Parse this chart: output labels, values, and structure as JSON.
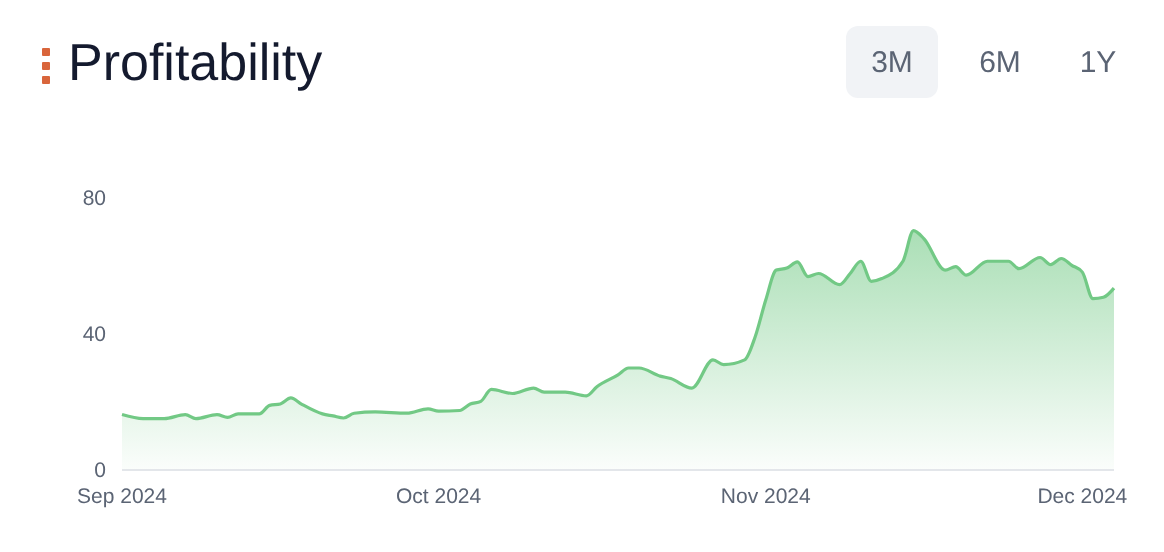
{
  "chart_data": {
    "type": "area",
    "title": "Profitability",
    "annotations": [
      "3M",
      "6M",
      "1Y"
    ],
    "x": [
      "2024-09-01",
      "2024-09-03",
      "2024-09-05",
      "2024-09-07",
      "2024-09-08",
      "2024-09-10",
      "2024-09-11",
      "2024-09-12",
      "2024-09-14",
      "2024-09-15",
      "2024-09-16",
      "2024-09-17",
      "2024-09-18",
      "2024-09-20",
      "2024-09-21",
      "2024-09-22",
      "2024-09-23",
      "2024-09-25",
      "2024-09-28",
      "2024-09-30",
      "2024-10-01",
      "2024-10-03",
      "2024-10-04",
      "2024-10-05",
      "2024-10-06",
      "2024-10-08",
      "2024-10-10",
      "2024-10-11",
      "2024-10-13",
      "2024-10-15",
      "2024-10-16",
      "2024-10-18",
      "2024-10-19",
      "2024-10-20",
      "2024-10-22",
      "2024-10-23",
      "2024-10-25",
      "2024-10-27",
      "2024-10-28",
      "2024-10-30",
      "2024-10-31",
      "2024-11-01",
      "2024-11-02",
      "2024-11-03",
      "2024-11-04",
      "2024-11-05",
      "2024-11-06",
      "2024-11-08",
      "2024-11-09",
      "2024-11-10",
      "2024-11-11",
      "2024-11-12",
      "2024-11-14",
      "2024-11-15",
      "2024-11-16",
      "2024-11-18",
      "2024-11-19",
      "2024-11-20",
      "2024-11-22",
      "2024-11-24",
      "2024-11-25",
      "2024-11-27",
      "2024-11-28",
      "2024-11-29",
      "2024-11-30",
      "2024-12-01",
      "2024-12-02",
      "2024-12-03",
      "2024-12-04"
    ],
    "series": [
      {
        "color": "#72c985",
        "values": [
          16.3,
          15.1,
          15.1,
          16.3,
          15.1,
          16.3,
          15.5,
          16.5,
          16.5,
          19,
          19.4,
          21.2,
          19.4,
          16.5,
          15.9,
          15.3,
          16.7,
          17.1,
          16.7,
          18,
          17.3,
          17.5,
          19.4,
          20.2,
          23.7,
          22.5,
          24.1,
          22.9,
          22.9,
          21.8,
          24.5,
          28,
          30,
          30,
          27.6,
          26.9,
          24.1,
          32.4,
          31,
          32.4,
          39.2,
          50,
          58.8,
          59.4,
          61.2,
          56.9,
          57.8,
          54.5,
          57.8,
          61.4,
          55.5,
          56.3,
          61.4,
          70.4,
          68,
          58.8,
          59.8,
          57.3,
          61.4,
          61.4,
          59.2,
          62.5,
          60.4,
          62.2,
          60.2,
          58.2,
          50.4,
          50.8,
          53.5
        ]
      }
    ],
    "xlim": [
      "2024-09-01",
      "2024-12-04"
    ],
    "xticks": [
      {
        "value": "2024-09-01",
        "label": "Sep 2024"
      },
      {
        "value": "2024-10-01",
        "label": "Oct 2024"
      },
      {
        "value": "2024-11-01",
        "label": "Nov 2024"
      },
      {
        "value": "2024-12-01",
        "label": "Dec 2024"
      }
    ],
    "ylim": [
      0,
      80
    ],
    "yticks": [
      0,
      40,
      80
    ],
    "grid": false
  }
}
